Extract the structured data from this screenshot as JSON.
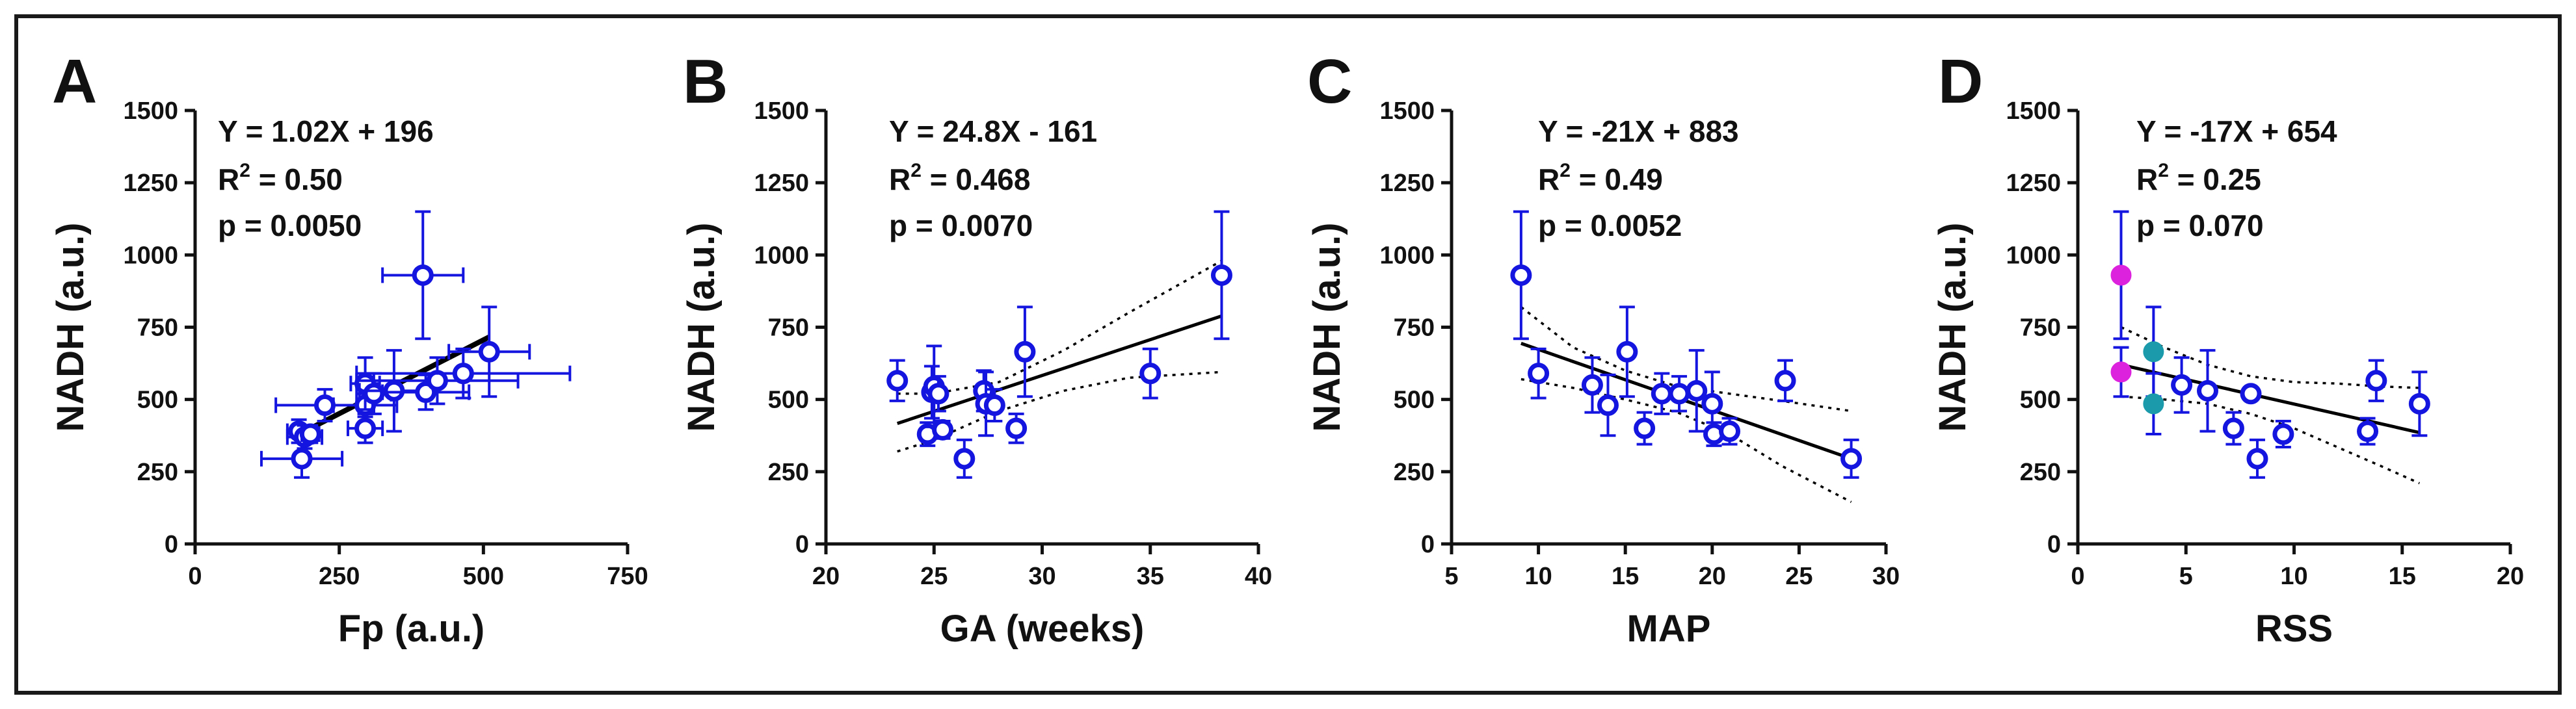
{
  "colors": {
    "points": "#1515e0",
    "magenta": "#dd22dd",
    "teal": "#1a9aaa",
    "axis": "#111111"
  },
  "chart_data": [
    {
      "panel": "A",
      "type": "scatter",
      "xlabel": "Fp (a.u.)",
      "ylabel": "NADH (a.u.)",
      "xlim": [
        0,
        750
      ],
      "ylim": [
        0,
        1500
      ],
      "xticks": [
        0,
        250,
        500,
        750
      ],
      "yticks": [
        0,
        250,
        500,
        750,
        1000,
        1250,
        1500
      ],
      "annotation": {
        "eq": "Y = 1.02X + 196",
        "r2_label": "R",
        "r2_exp": "2",
        "r2_value": " = 0.50",
        "p": "p = 0.0050"
      },
      "fit": {
        "slope": 1.02,
        "intercept": 196,
        "x_range": [
          180,
          510
        ]
      },
      "points": [
        {
          "x": 185,
          "y": 295,
          "xerr": 70,
          "yerr": 65,
          "color": "open"
        },
        {
          "x": 180,
          "y": 390,
          "xerr": 20,
          "yerr": 40,
          "color": "open"
        },
        {
          "x": 190,
          "y": 370,
          "xerr": 30,
          "yerr": 40,
          "color": "open"
        },
        {
          "x": 200,
          "y": 380,
          "xerr": 15,
          "yerr": 30,
          "color": "open"
        },
        {
          "x": 225,
          "y": 480,
          "xerr": 85,
          "yerr": 55,
          "color": "open"
        },
        {
          "x": 295,
          "y": 400,
          "xerr": 30,
          "yerr": 50,
          "color": "open"
        },
        {
          "x": 295,
          "y": 480,
          "xerr": 55,
          "yerr": 40,
          "color": "open"
        },
        {
          "x": 295,
          "y": 555,
          "xerr": 25,
          "yerr": 90,
          "color": "open"
        },
        {
          "x": 310,
          "y": 520,
          "xerr": 30,
          "yerr": 70,
          "color": "open"
        },
        {
          "x": 345,
          "y": 530,
          "xerr": 60,
          "yerr": 140,
          "color": "open"
        },
        {
          "x": 395,
          "y": 930,
          "xerr": 70,
          "yerr": 220,
          "color": "open"
        },
        {
          "x": 400,
          "y": 525,
          "xerr": 75,
          "yerr": 60,
          "color": "open"
        },
        {
          "x": 420,
          "y": 565,
          "xerr": 140,
          "yerr": 80,
          "color": "open"
        },
        {
          "x": 465,
          "y": 590,
          "xerr": 185,
          "yerr": 85,
          "color": "open"
        },
        {
          "x": 510,
          "y": 665,
          "xerr": 70,
          "yerr": 155,
          "color": "open"
        }
      ]
    },
    {
      "panel": "B",
      "type": "scatter",
      "xlabel": "GA (weeks)",
      "ylabel": "NADH (a.u.)",
      "xlim": [
        20,
        40
      ],
      "ylim": [
        0,
        1500
      ],
      "xticks": [
        20,
        25,
        30,
        35,
        40
      ],
      "yticks": [
        0,
        250,
        500,
        750,
        1000,
        1250,
        1500
      ],
      "annotation": {
        "eq": "Y = 24.8X - 161",
        "r2_label": "R",
        "r2_exp": "2",
        "r2_value": " = 0.468",
        "p": "p = 0.0070"
      },
      "fit": {
        "slope": 24.8,
        "intercept": -161,
        "x_range": [
          23.3,
          38.3
        ]
      },
      "ci_upper": [
        [
          23.3,
          520
        ],
        [
          25,
          520
        ],
        [
          28,
          560
        ],
        [
          31,
          670
        ],
        [
          34,
          800
        ],
        [
          38.3,
          980
        ]
      ],
      "ci_lower": [
        [
          23.3,
          320
        ],
        [
          25,
          360
        ],
        [
          28,
          460
        ],
        [
          31,
          530
        ],
        [
          34,
          575
        ],
        [
          38.3,
          595
        ]
      ],
      "points": [
        {
          "x": 23.3,
          "y": 565,
          "xerr": 0,
          "yerr": 70,
          "color": "open"
        },
        {
          "x": 24.7,
          "y": 380,
          "xerr": 0,
          "yerr": 40,
          "color": "open"
        },
        {
          "x": 24.9,
          "y": 525,
          "xerr": 0,
          "yerr": 90,
          "color": "open"
        },
        {
          "x": 25.0,
          "y": 545,
          "xerr": 0,
          "yerr": 140,
          "color": "open"
        },
        {
          "x": 25.2,
          "y": 520,
          "xerr": 0,
          "yerr": 60,
          "color": "open"
        },
        {
          "x": 25.4,
          "y": 395,
          "xerr": 0,
          "yerr": 30,
          "color": "open"
        },
        {
          "x": 26.4,
          "y": 295,
          "xerr": 0,
          "yerr": 65,
          "color": "open"
        },
        {
          "x": 27.3,
          "y": 530,
          "xerr": 0,
          "yerr": 70,
          "color": "open"
        },
        {
          "x": 27.4,
          "y": 485,
          "xerr": 0,
          "yerr": 110,
          "color": "open"
        },
        {
          "x": 27.8,
          "y": 480,
          "xerr": 0,
          "yerr": 55,
          "color": "open"
        },
        {
          "x": 28.8,
          "y": 400,
          "xerr": 0,
          "yerr": 50,
          "color": "open"
        },
        {
          "x": 29.2,
          "y": 665,
          "xerr": 0,
          "yerr": 155,
          "color": "open"
        },
        {
          "x": 35.0,
          "y": 590,
          "xerr": 0,
          "yerr": 85,
          "color": "open"
        },
        {
          "x": 38.3,
          "y": 930,
          "xerr": 0,
          "yerr": 220,
          "color": "open"
        }
      ]
    },
    {
      "panel": "C",
      "type": "scatter",
      "xlabel": "MAP",
      "ylabel": "NADH (a.u.)",
      "xlim": [
        5,
        30
      ],
      "ylim": [
        0,
        1500
      ],
      "xticks": [
        5,
        10,
        15,
        20,
        25,
        30
      ],
      "yticks": [
        0,
        250,
        500,
        750,
        1000,
        1250,
        1500
      ],
      "annotation": {
        "eq": "Y = -21X + 883",
        "r2_label": "R",
        "r2_exp": "2",
        "r2_value": " = 0.49",
        "p": "p = 0.0052"
      },
      "fit": {
        "slope": -21,
        "intercept": 883,
        "x_range": [
          9,
          28
        ]
      },
      "ci_upper": [
        [
          9,
          820
        ],
        [
          12,
          680
        ],
        [
          15,
          600
        ],
        [
          18,
          545
        ],
        [
          21,
          520
        ],
        [
          24,
          495
        ],
        [
          28,
          460
        ]
      ],
      "ci_lower": [
        [
          9,
          570
        ],
        [
          12,
          540
        ],
        [
          15,
          500
        ],
        [
          18,
          455
        ],
        [
          21,
          380
        ],
        [
          24,
          270
        ],
        [
          28,
          145
        ]
      ],
      "points": [
        {
          "x": 9.0,
          "y": 930,
          "xerr": 0,
          "yerr": 220,
          "color": "open"
        },
        {
          "x": 10.0,
          "y": 590,
          "xerr": 0,
          "yerr": 85,
          "color": "open"
        },
        {
          "x": 13.1,
          "y": 550,
          "xerr": 0,
          "yerr": 95,
          "color": "open"
        },
        {
          "x": 14.0,
          "y": 480,
          "xerr": 0,
          "yerr": 105,
          "color": "open"
        },
        {
          "x": 15.1,
          "y": 665,
          "xerr": 0,
          "yerr": 155,
          "color": "open"
        },
        {
          "x": 16.1,
          "y": 400,
          "xerr": 0,
          "yerr": 55,
          "color": "open"
        },
        {
          "x": 17.1,
          "y": 520,
          "xerr": 0,
          "yerr": 70,
          "color": "open"
        },
        {
          "x": 18.1,
          "y": 520,
          "xerr": 0,
          "yerr": 60,
          "color": "open"
        },
        {
          "x": 19.1,
          "y": 530,
          "xerr": 0,
          "yerr": 140,
          "color": "open"
        },
        {
          "x": 20.0,
          "y": 485,
          "xerr": 0,
          "yerr": 110,
          "color": "open"
        },
        {
          "x": 20.1,
          "y": 380,
          "xerr": 0,
          "yerr": 40,
          "color": "open"
        },
        {
          "x": 21.0,
          "y": 390,
          "xerr": 0,
          "yerr": 45,
          "color": "open"
        },
        {
          "x": 24.2,
          "y": 565,
          "xerr": 0,
          "yerr": 70,
          "color": "open"
        },
        {
          "x": 28.0,
          "y": 295,
          "xerr": 0,
          "yerr": 65,
          "color": "open"
        }
      ]
    },
    {
      "panel": "D",
      "type": "scatter",
      "xlabel": "RSS",
      "ylabel": "NADH (a.u.)",
      "xlim": [
        0,
        20
      ],
      "ylim": [
        0,
        1500
      ],
      "xticks": [
        0,
        5,
        10,
        15,
        20
      ],
      "yticks": [
        0,
        250,
        500,
        750,
        1000,
        1250,
        1500
      ],
      "annotation": {
        "eq": "Y = -17X + 654",
        "r2_label": "R",
        "r2_exp": "2",
        "r2_value": " = 0.25",
        "p": "p = 0.070"
      },
      "fit": {
        "slope": -17,
        "intercept": 654,
        "x_range": [
          2,
          15.8
        ]
      },
      "ci_upper": [
        [
          2,
          750
        ],
        [
          4,
          680
        ],
        [
          6,
          620
        ],
        [
          8,
          580
        ],
        [
          10,
          560
        ],
        [
          12,
          555
        ],
        [
          14,
          545
        ],
        [
          15.8,
          540
        ]
      ],
      "ci_lower": [
        [
          2,
          510
        ],
        [
          4,
          500
        ],
        [
          6,
          485
        ],
        [
          8,
          450
        ],
        [
          10,
          400
        ],
        [
          12,
          335
        ],
        [
          14,
          270
        ],
        [
          15.8,
          210
        ]
      ],
      "points": [
        {
          "x": 2.0,
          "y": 930,
          "xerr": 0,
          "yerr": 220,
          "color": "magenta"
        },
        {
          "x": 2.0,
          "y": 595,
          "xerr": 0,
          "yerr": 85,
          "color": "magenta"
        },
        {
          "x": 3.5,
          "y": 665,
          "xerr": 0,
          "yerr": 155,
          "color": "teal"
        },
        {
          "x": 3.5,
          "y": 485,
          "xerr": 0,
          "yerr": 105,
          "color": "teal"
        },
        {
          "x": 4.8,
          "y": 550,
          "xerr": 0,
          "yerr": 95,
          "color": "open"
        },
        {
          "x": 6.0,
          "y": 530,
          "xerr": 0,
          "yerr": 140,
          "color": "open"
        },
        {
          "x": 7.2,
          "y": 400,
          "xerr": 0,
          "yerr": 55,
          "color": "open"
        },
        {
          "x": 8.0,
          "y": 520,
          "xerr": 0,
          "yerr": 20,
          "color": "open"
        },
        {
          "x": 8.3,
          "y": 295,
          "xerr": 0,
          "yerr": 65,
          "color": "open"
        },
        {
          "x": 9.5,
          "y": 380,
          "xerr": 0,
          "yerr": 45,
          "color": "open"
        },
        {
          "x": 13.4,
          "y": 390,
          "xerr": 0,
          "yerr": 45,
          "color": "open"
        },
        {
          "x": 13.8,
          "y": 565,
          "xerr": 0,
          "yerr": 70,
          "color": "open"
        },
        {
          "x": 15.8,
          "y": 485,
          "xerr": 0,
          "yerr": 110,
          "color": "open"
        }
      ]
    }
  ]
}
